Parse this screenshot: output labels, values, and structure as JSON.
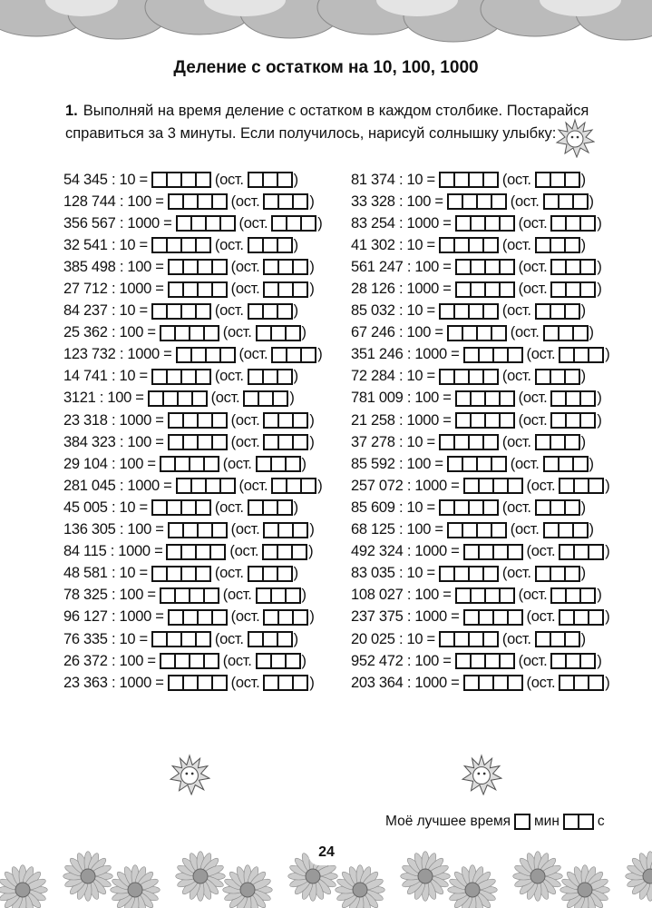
{
  "title": "Деление с остатком на 10, 100, 1000",
  "task": {
    "number": "1.",
    "text": "Выполняй на время деление с остатком в каждом столбике. Постарайся справиться за 3 минуты. Если получилось, нарисуй солнышку улыбку:"
  },
  "rem_label": "(ост.",
  "close": ")",
  "left": [
    "54 345 : 10 =",
    "128 744 : 100 =",
    "356 567 : 1000 =",
    "32 541 : 10 =",
    "385 498 : 100 =",
    "27 712 : 1000 =",
    "84 237 : 10 =",
    "25 362 : 100 =",
    "123 732 : 1000 =",
    "14 741 : 10 =",
    "3121 : 100 =",
    "23 318 : 1000 =",
    "384 323 : 100 =",
    "29 104 : 100 =",
    "281 045 : 1000 =",
    "45 005 : 10 =",
    "136 305 : 100 =",
    "84 115 : 1000 =",
    "48 581 : 10 =",
    "78 325 : 100 =",
    "96 127 : 1000 =",
    "76 335 : 10 =",
    "26 372 : 100 =",
    "23 363 : 1000 ="
  ],
  "right": [
    "81 374 : 10 =",
    "33 328 : 100 =",
    "83 254 : 1000 =",
    "41 302 : 10 =",
    "561 247 : 100 =",
    "28 126 : 1000 =",
    "85 032 : 10 =",
    "67 246 : 100 =",
    "351 246 : 1000 =",
    "72 284 : 10 =",
    "781 009 : 100 =",
    "21 258 : 1000 =",
    "37 278 : 10 =",
    "85 592 : 100 =",
    "257 072 : 1000 =",
    "85 609 : 10 =",
    "68 125 : 100 =",
    "492 324 : 1000 =",
    "83 035 : 10 =",
    "108 027 : 100 =",
    "237 375 : 1000 =",
    "20 025 : 10 =",
    "952 472 : 100 =",
    "203 364 : 1000 ="
  ],
  "best_time": {
    "label": "Моё лучшее время",
    "min": "мин",
    "sec": "с"
  },
  "page_number": "24"
}
